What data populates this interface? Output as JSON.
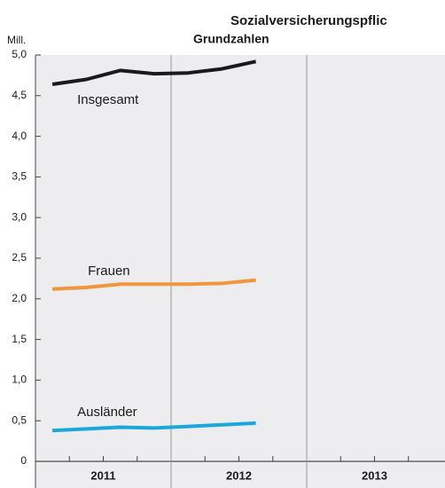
{
  "chart_data": {
    "type": "line",
    "title": "Sozialversicherungspflic",
    "subtitle": "Grundzahlen",
    "y_label": "Mill.",
    "years": [
      "2011",
      "2012",
      "2013"
    ],
    "categories": [
      null,
      null,
      null,
      null,
      null,
      null,
      null,
      null,
      null,
      null,
      null,
      null
    ],
    "series": [
      {
        "name": "Insgesamt",
        "color": "#1a1a1a",
        "values": [
          4.64,
          4.7,
          4.81,
          4.77,
          4.78,
          4.83,
          4.92,
          null,
          null,
          null,
          null,
          null
        ]
      },
      {
        "name": "Frauen",
        "color": "#f0963c",
        "values": [
          2.12,
          2.14,
          2.18,
          2.18,
          2.18,
          2.19,
          2.23,
          null,
          null,
          null,
          null,
          null
        ]
      },
      {
        "name": "Ausländer",
        "color": "#1aa7d9",
        "values": [
          0.38,
          0.4,
          0.42,
          0.41,
          0.43,
          0.45,
          0.47,
          null,
          null,
          null,
          null,
          null
        ]
      }
    ],
    "ylim": [
      0,
      5
    ],
    "yticks": [
      0,
      {
        "value": 0.5,
        "label": "0,5"
      },
      {
        "value": 1,
        "label": "1,0"
      },
      {
        "value": 1.5,
        "label": "1,5"
      },
      {
        "value": 2,
        "label": "2,0"
      },
      {
        "value": 2.5,
        "label": "2,5"
      },
      {
        "value": 3,
        "label": "3,0"
      },
      {
        "value": 3.5,
        "label": "3,5"
      },
      {
        "value": 4,
        "label": "4,0"
      },
      {
        "value": 4.5,
        "label": "4,5"
      },
      {
        "value": 5,
        "label": "5,0"
      }
    ],
    "grid": false
  }
}
